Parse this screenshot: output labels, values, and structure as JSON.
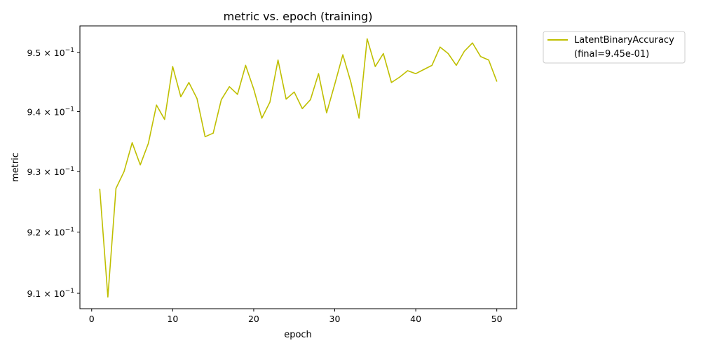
{
  "chart_data": {
    "type": "line",
    "title": "metric vs. epoch (training)",
    "xlabel": "epoch",
    "ylabel": "metric",
    "y_scale": "log",
    "grid": false,
    "legend_placement": "outside-top-right",
    "xlim": [
      -1.45,
      52.45
    ],
    "ylim": [
      0.9075,
      0.9545
    ],
    "x_ticks": [
      0,
      10,
      20,
      30,
      40,
      50
    ],
    "x_tick_labels": [
      "0",
      "10",
      "20",
      "30",
      "40",
      "50"
    ],
    "y_ticks": [
      0.91,
      0.92,
      0.93,
      0.94,
      0.95
    ],
    "y_tick_labels": [
      {
        "mantissa": "9.1",
        "times": "×",
        "base": "10",
        "exp": "−1"
      },
      {
        "mantissa": "9.2",
        "times": "×",
        "base": "10",
        "exp": "−1"
      },
      {
        "mantissa": "9.3",
        "times": "×",
        "base": "10",
        "exp": "−1"
      },
      {
        "mantissa": "9.4",
        "times": "×",
        "base": "10",
        "exp": "−1"
      },
      {
        "mantissa": "9.5",
        "times": "×",
        "base": "10",
        "exp": "−1"
      }
    ],
    "series": [
      {
        "name": "LatentBinaryAccuracy",
        "legend_note": "(final=9.45e-01)",
        "color": "#bfbf00",
        "x": [
          1,
          2,
          3,
          4,
          5,
          6,
          7,
          8,
          9,
          10,
          11,
          12,
          13,
          14,
          15,
          16,
          17,
          18,
          19,
          20,
          21,
          22,
          23,
          24,
          25,
          26,
          27,
          28,
          29,
          30,
          31,
          32,
          33,
          34,
          35,
          36,
          37,
          38,
          39,
          40,
          41,
          42,
          43,
          44,
          45,
          46,
          47,
          48,
          49,
          50
        ],
        "y": [
          0.9271,
          0.9094,
          0.9272,
          0.93,
          0.9348,
          0.9311,
          0.9347,
          0.9411,
          0.9387,
          0.9476,
          0.9425,
          0.9449,
          0.9422,
          0.9358,
          0.9364,
          0.942,
          0.9442,
          0.9429,
          0.9478,
          0.9438,
          0.9389,
          0.9416,
          0.9487,
          0.9421,
          0.9433,
          0.9405,
          0.942,
          0.9464,
          0.9398,
          0.9446,
          0.9496,
          0.9449,
          0.9389,
          0.9523,
          0.9476,
          0.9498,
          0.9449,
          0.9458,
          0.9469,
          0.9464,
          0.9471,
          0.9478,
          0.9509,
          0.9498,
          0.9478,
          0.9502,
          0.9516,
          0.9493,
          0.9487,
          0.9451
        ]
      }
    ]
  }
}
